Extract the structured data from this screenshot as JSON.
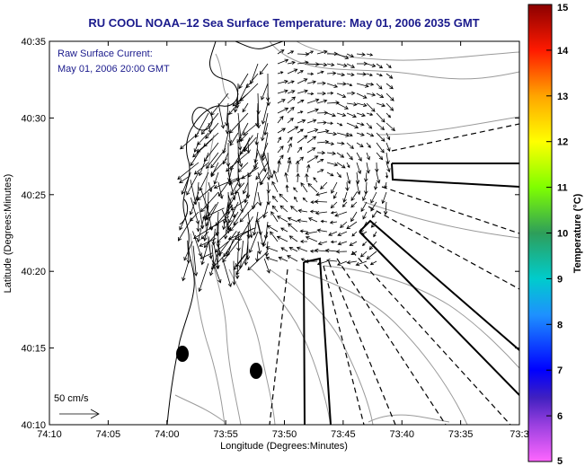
{
  "title": "RU COOL  NOAA–12  Sea Surface Temperature:  May 01, 2006 2035 GMT",
  "annotation": {
    "line1": "Raw Surface Current:",
    "line2": "May 01, 2006 20:00 GMT"
  },
  "scale_arrow_label": "50 cm/s",
  "map": {
    "xlabel": "Longitude (Degrees:Minutes)",
    "ylabel": "Latitude (Degrees:Minutes)",
    "x_ticks": [
      "74:10",
      "74:05",
      "74:00",
      "73:55",
      "73:50",
      "73:45",
      "73:40",
      "73:35",
      "73:3"
    ],
    "y_ticks": [
      "40:35",
      "40:30",
      "40:25",
      "40:20",
      "40:15",
      "40:10"
    ],
    "colors": {
      "coast": "#000000",
      "contour": "#9a9a9a",
      "vector": "#000000"
    }
  },
  "colorbar": {
    "label": "Temperature (°C)",
    "ticks": [
      "15",
      "14",
      "13",
      "12",
      "11",
      "10",
      "9",
      "8",
      "7",
      "6",
      "5"
    ],
    "range": [
      5,
      15
    ],
    "colors": [
      "#ff55ff",
      "#8a2be2",
      "#0000cd",
      "#1e90ff",
      "#00ced1",
      "#2e8b57",
      "#7fff00",
      "#ffff00",
      "#ffa500",
      "#ff2000",
      "#8b0000"
    ]
  }
}
